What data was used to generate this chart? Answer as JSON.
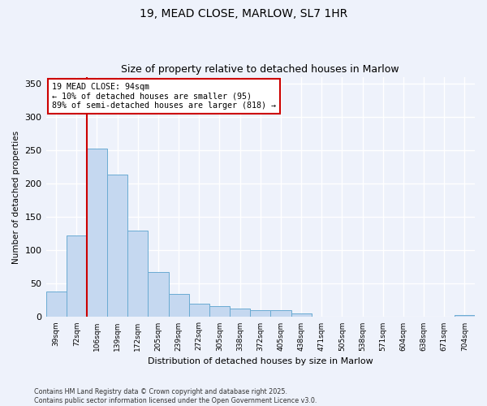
{
  "title": "19, MEAD CLOSE, MARLOW, SL7 1HR",
  "subtitle": "Size of property relative to detached houses in Marlow",
  "xlabel": "Distribution of detached houses by size in Marlow",
  "ylabel": "Number of detached properties",
  "bin_labels": [
    "39sqm",
    "72sqm",
    "106sqm",
    "139sqm",
    "172sqm",
    "205sqm",
    "239sqm",
    "272sqm",
    "305sqm",
    "338sqm",
    "372sqm",
    "405sqm",
    "438sqm",
    "471sqm",
    "505sqm",
    "538sqm",
    "571sqm",
    "604sqm",
    "638sqm",
    "671sqm",
    "704sqm"
  ],
  "bar_values": [
    38,
    122,
    252,
    213,
    129,
    67,
    34,
    20,
    16,
    13,
    10,
    10,
    5,
    0,
    0,
    0,
    0,
    0,
    0,
    0,
    3
  ],
  "bar_color": "#c5d8f0",
  "bar_edge_color": "#6aabd2",
  "vline_label": "19 MEAD CLOSE: 94sqm",
  "annotation_line1": "← 10% of detached houses are smaller (95)",
  "annotation_line2": "89% of semi-detached houses are larger (818) →",
  "annotation_box_color": "#ffffff",
  "annotation_box_edge": "#cc0000",
  "vline_color": "#cc0000",
  "ylim": [
    0,
    360
  ],
  "yticks": [
    0,
    50,
    100,
    150,
    200,
    250,
    300,
    350
  ],
  "footer1": "Contains HM Land Registry data © Crown copyright and database right 2025.",
  "footer2": "Contains public sector information licensed under the Open Government Licence v3.0.",
  "bg_color": "#eef2fb",
  "grid_color": "#ffffff",
  "title_fontsize": 10,
  "subtitle_fontsize": 9
}
